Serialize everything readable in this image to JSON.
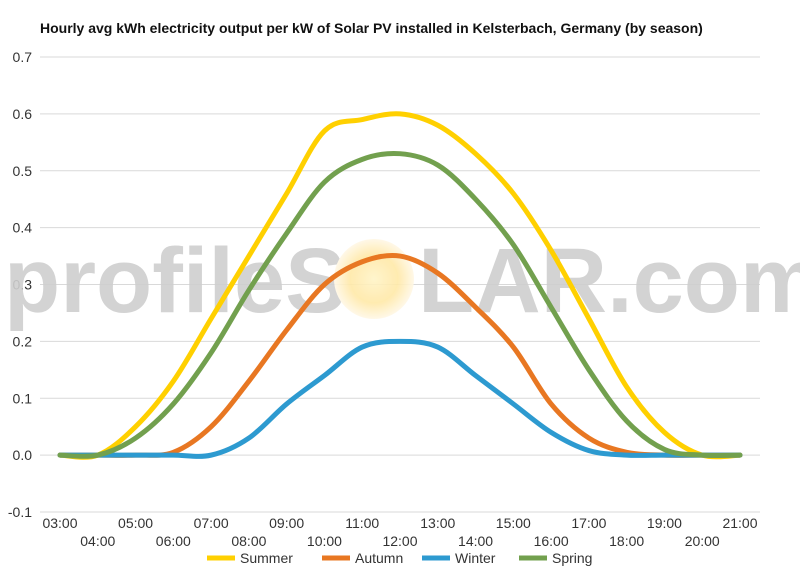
{
  "chart_data": {
    "type": "line",
    "title": "Hourly avg kWh electricity output per kW of Solar PV installed in Kelsterbach, Germany (by season)",
    "xlabel": "",
    "ylabel": "",
    "ylim": [
      -0.1,
      0.7
    ],
    "yticks": [
      "-0.1",
      "0.0",
      "0.1",
      "0.2",
      "0.3",
      "0.4",
      "0.5",
      "0.6",
      "0.7"
    ],
    "x": [
      "03:00",
      "04:00",
      "05:00",
      "06:00",
      "07:00",
      "08:00",
      "09:00",
      "10:00",
      "11:00",
      "12:00",
      "13:00",
      "14:00",
      "15:00",
      "16:00",
      "17:00",
      "18:00",
      "19:00",
      "20:00",
      "21:00"
    ],
    "grid": true,
    "legend_position": "bottom",
    "series": [
      {
        "name": "Summer",
        "color": "#ffd000",
        "values": [
          0.0,
          0.0,
          0.05,
          0.13,
          0.24,
          0.35,
          0.46,
          0.57,
          0.59,
          0.6,
          0.58,
          0.53,
          0.46,
          0.36,
          0.24,
          0.12,
          0.04,
          0.0,
          0.0
        ]
      },
      {
        "name": "Autumn",
        "color": "#e87722",
        "values": [
          0.0,
          0.0,
          0.0,
          0.005,
          0.05,
          0.13,
          0.22,
          0.3,
          0.34,
          0.35,
          0.32,
          0.26,
          0.19,
          0.09,
          0.03,
          0.005,
          0.0,
          0.0,
          0.0
        ]
      },
      {
        "name": "Winter",
        "color": "#2d9ad0",
        "values": [
          0.0,
          0.0,
          0.0,
          0.0,
          0.0,
          0.03,
          0.09,
          0.14,
          0.19,
          0.2,
          0.19,
          0.14,
          0.09,
          0.04,
          0.008,
          0.0,
          0.0,
          0.0,
          0.0
        ]
      },
      {
        "name": "Spring",
        "color": "#72a04e",
        "values": [
          0.0,
          0.0,
          0.03,
          0.09,
          0.18,
          0.29,
          0.39,
          0.48,
          0.52,
          0.53,
          0.51,
          0.45,
          0.37,
          0.26,
          0.15,
          0.06,
          0.01,
          0.0,
          0.0
        ]
      }
    ]
  },
  "watermark": {
    "text_left": "profileS",
    "text_right": "LAR.com"
  }
}
